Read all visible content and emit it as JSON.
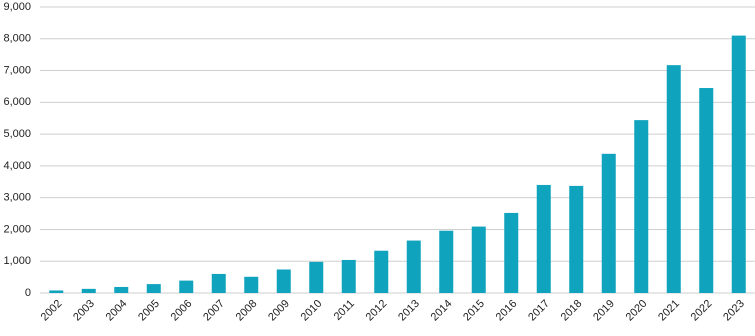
{
  "chart_data": {
    "type": "bar",
    "categories": [
      "2002",
      "2003",
      "2004",
      "2005",
      "2006",
      "2007",
      "2008",
      "2009",
      "2010",
      "2011",
      "2012",
      "2013",
      "2014",
      "2015",
      "2016",
      "2017",
      "2018",
      "2019",
      "2020",
      "2021",
      "2022",
      "2023"
    ],
    "values": [
      80,
      130,
      190,
      280,
      390,
      600,
      510,
      740,
      980,
      1040,
      1330,
      1650,
      1960,
      2090,
      2520,
      3400,
      3370,
      4380,
      5440,
      7170,
      6450,
      8100
    ],
    "color": "#0fa3bd",
    "ylim": [
      0,
      9000
    ],
    "yticks": [
      0,
      {
        "value": 1000,
        "label": "1,000"
      },
      {
        "value": 2000,
        "label": "2,000"
      },
      {
        "value": 3000,
        "label": "3,000"
      },
      {
        "value": 4000,
        "label": "4,000"
      },
      {
        "value": 5000,
        "label": "5,000"
      },
      {
        "value": 6000,
        "label": "6,000"
      },
      {
        "value": 7000,
        "label": "7,000"
      },
      {
        "value": 8000,
        "label": "8,000"
      },
      {
        "value": 9000,
        "label": "9,000"
      }
    ],
    "grid": true
  }
}
